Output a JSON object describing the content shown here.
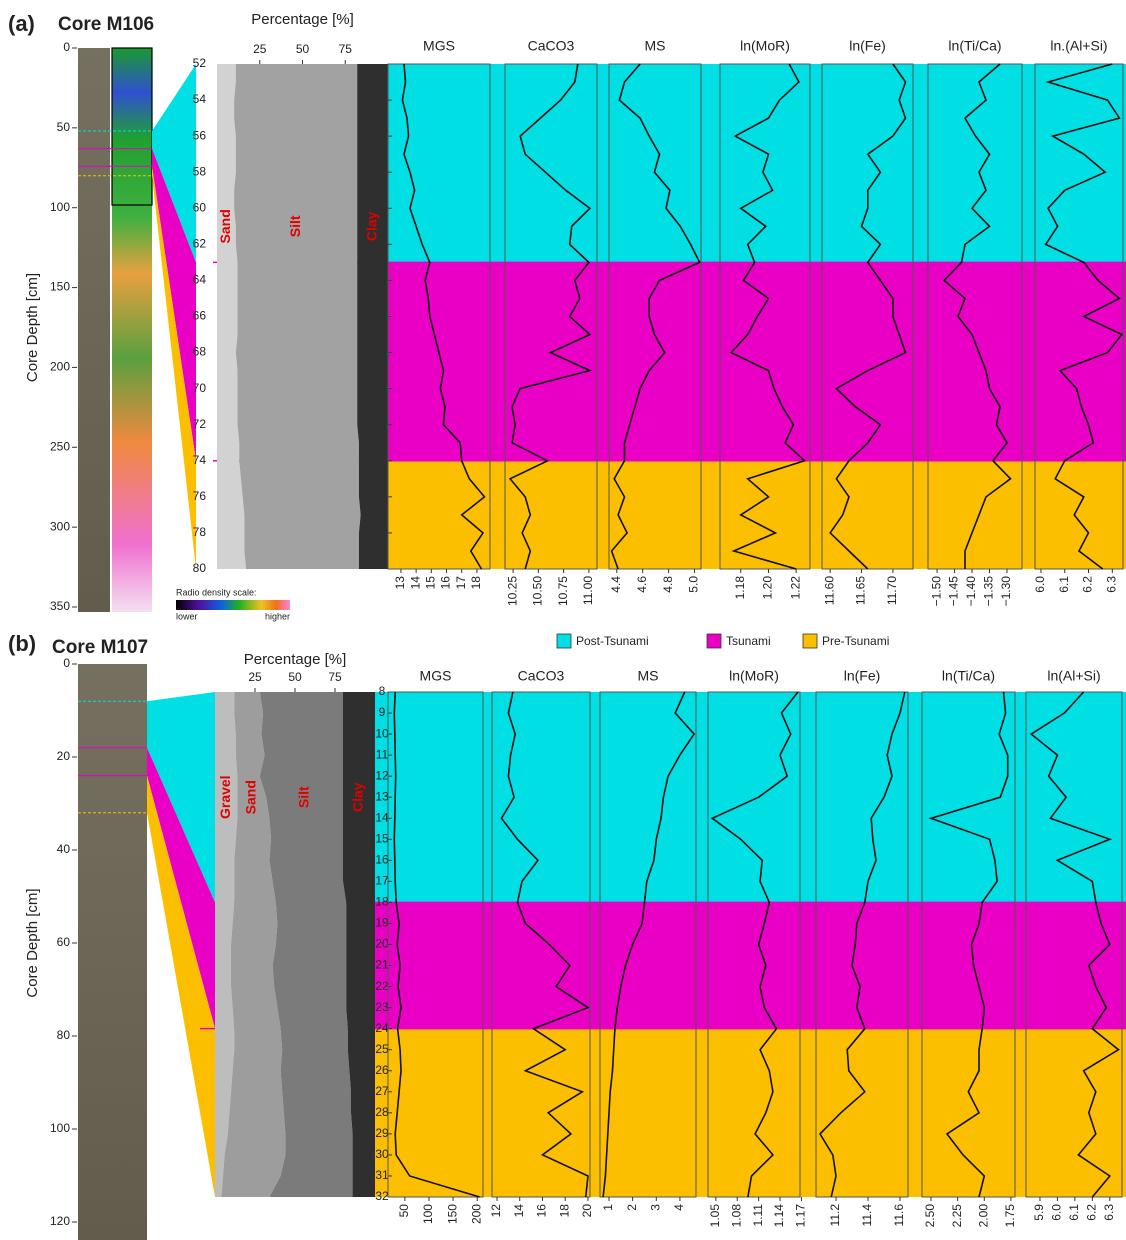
{
  "legend": [
    {
      "name": "Post-Tsunami",
      "color": "#00e0e4"
    },
    {
      "name": "Tsunami",
      "color": "#ea00c4"
    },
    {
      "name": "Pre-Tsunami",
      "color": "#fcbf00"
    }
  ],
  "chart_data": [
    {
      "type": "panel",
      "label": "(a)",
      "title": "Core M106",
      "invert_y": true,
      "core_axis": {
        "label": "Core Depth [cm]",
        "ylim": [
          0,
          350
        ],
        "yticks": [
          0,
          50,
          100,
          150,
          200,
          250,
          300,
          350
        ]
      },
      "density_scale": {
        "title": "Radio density scale:",
        "low": "lower",
        "high": "higher"
      },
      "boundaries": [
        52,
        63,
        74,
        80
      ],
      "ylim": [
        52,
        80
      ],
      "yticks": [
        52,
        54,
        56,
        58,
        60,
        62,
        64,
        66,
        68,
        70,
        72,
        74,
        76,
        78,
        80
      ],
      "depths": [
        52,
        53,
        54,
        55,
        56,
        57,
        58,
        59,
        60,
        61,
        62,
        63,
        64,
        65,
        66,
        67,
        68,
        69,
        70,
        71,
        72,
        73,
        74,
        75,
        76,
        77,
        78,
        79,
        80
      ],
      "composition": {
        "type": "area",
        "title": "Percentage [%]",
        "xlim": [
          0,
          100
        ],
        "xticks": [
          25,
          50,
          75
        ],
        "series": [
          {
            "name": "Sand",
            "color": "#d2d2d2",
            "values": [
              11,
              11,
              10,
              10,
              11,
              11,
              11,
              10,
              10,
              11,
              11,
              12,
              12,
              12,
              12,
              12,
              11,
              12,
              12,
              12,
              12,
              13,
              13,
              14,
              15,
              16,
              16,
              16,
              17
            ]
          },
          {
            "name": "Silt",
            "color": "#a2a2a2",
            "values": [
              71,
              71,
              72,
              72,
              71,
              71,
              71,
              72,
              72,
              71,
              71,
              70,
              70,
              70,
              70,
              70,
              71,
              70,
              70,
              70,
              70,
              70,
              70,
              69,
              68,
              68,
              67,
              67,
              66
            ]
          },
          {
            "name": "Clay",
            "color": "#2f2f2f",
            "values": [
              18,
              18,
              18,
              18,
              18,
              18,
              18,
              18,
              18,
              18,
              18,
              18,
              18,
              18,
              18,
              18,
              18,
              18,
              18,
              18,
              18,
              17,
              17,
              17,
              17,
              16,
              17,
              17,
              17
            ]
          }
        ]
      },
      "profiles": [
        {
          "type": "line",
          "title": "MGS",
          "xlim": [
            12.15,
            18.86
          ],
          "xticks": [
            13,
            14,
            15,
            16,
            17,
            18
          ],
          "values": [
            13.2,
            13.3,
            13.1,
            13.4,
            13.5,
            13.2,
            13.6,
            13.9,
            13.6,
            14.0,
            14.4,
            14.9,
            14.6,
            14.8,
            14.9,
            15.2,
            15.5,
            15.8,
            15.6,
            15.9,
            15.8,
            16.9,
            17.0,
            17.5,
            18.5,
            17.0,
            18.4,
            17.6,
            18.3
          ]
        },
        {
          "type": "line",
          "title": "CaCO3",
          "xlim": [
            10.17,
            11.08
          ],
          "xticks": [
            {
              "value": 10.25,
              "label": "10.25"
            },
            {
              "value": 10.5,
              "label": "10.50"
            },
            {
              "value": 10.75,
              "label": "10.75"
            },
            {
              "value": 11,
              "label": "11.00"
            }
          ],
          "values": [
            10.89,
            10.86,
            10.72,
            10.52,
            10.32,
            10.37,
            10.57,
            10.77,
            11.01,
            10.83,
            10.81,
            11.0,
            10.86,
            10.91,
            10.81,
            11.01,
            10.62,
            11.01,
            10.32,
            10.24,
            10.27,
            10.24,
            10.59,
            10.22,
            10.37,
            10.42,
            10.34,
            10.42,
            10.37
          ]
        },
        {
          "type": "line",
          "title": "MS",
          "xlim": [
            4.34,
            5.05
          ],
          "xticks": [
            4.4,
            4.6,
            4.8,
            {
              "value": 5,
              "label": "5.0"
            }
          ],
          "values": [
            4.58,
            4.46,
            4.42,
            4.58,
            4.65,
            4.73,
            4.69,
            4.81,
            4.78,
            4.89,
            4.97,
            5.04,
            4.73,
            4.65,
            4.65,
            4.69,
            4.77,
            4.65,
            4.58,
            4.54,
            4.5,
            4.46,
            4.46,
            4.38,
            4.46,
            4.41,
            4.48,
            4.36,
            4.41
          ]
        },
        {
          "type": "line",
          "title": "ln(MoR)",
          "xlim": [
            1.165,
            1.23
          ],
          "xticks": [
            1.18,
            {
              "value": 1.2,
              "label": "1.20"
            },
            1.22
          ],
          "values": [
            1.215,
            1.222,
            1.208,
            1.2,
            1.176,
            1.2,
            1.196,
            1.203,
            1.18,
            1.198,
            1.185,
            1.19,
            1.182,
            1.2,
            1.192,
            1.185,
            1.173,
            1.2,
            1.204,
            1.21,
            1.218,
            1.212,
            1.226,
            1.185,
            1.2,
            1.18,
            1.205,
            1.175,
            1.22
          ]
        },
        {
          "type": "line",
          "title": "ln(Fe)",
          "xlim": [
            11.587,
            11.732
          ],
          "xticks": [
            {
              "value": 11.6,
              "label": "11.60"
            },
            11.65,
            {
              "value": 11.7,
              "label": "11.70"
            }
          ],
          "values": [
            11.7,
            11.72,
            11.71,
            11.72,
            11.7,
            11.66,
            11.68,
            11.66,
            11.66,
            11.65,
            11.68,
            11.66,
            11.68,
            11.7,
            11.7,
            11.71,
            11.72,
            11.66,
            11.61,
            11.64,
            11.68,
            11.66,
            11.63,
            11.61,
            11.63,
            11.62,
            11.6,
            11.63,
            11.66
          ]
        },
        {
          "type": "line",
          "title": "ln(Ti/Ca)",
          "xlim": [
            -1.526,
            -1.257
          ],
          "xticks": [
            {
              "value": -1.5,
              "label": "−1.50"
            },
            {
              "value": -1.45,
              "label": "−1.45"
            },
            {
              "value": -1.4,
              "label": "−1.40"
            },
            {
              "value": -1.35,
              "label": "−1.35"
            },
            {
              "value": -1.3,
              "label": "−1.30"
            }
          ],
          "values": [
            -1.32,
            -1.38,
            -1.36,
            -1.42,
            -1.39,
            -1.35,
            -1.38,
            -1.36,
            -1.4,
            -1.35,
            -1.42,
            -1.43,
            -1.48,
            -1.42,
            -1.44,
            -1.4,
            -1.38,
            -1.36,
            -1.35,
            -1.32,
            -1.33,
            -1.3,
            -1.34,
            -1.29,
            -1.36,
            -1.38,
            -1.4,
            -1.42,
            -1.42
          ]
        },
        {
          "type": "line",
          "title": "ln.(Al+Si)",
          "xlim": [
            5.975,
            6.345
          ],
          "xticks": [
            {
              "value": 6,
              "label": "6.0"
            },
            6.1,
            6.2,
            6.3
          ],
          "values": [
            6.3,
            6.03,
            6.28,
            6.33,
            6.05,
            6.18,
            6.27,
            6.1,
            6.03,
            6.07,
            6.02,
            6.18,
            6.24,
            6.33,
            6.18,
            6.34,
            6.28,
            6.08,
            6.15,
            6.17,
            6.2,
            6.22,
            6.1,
            6.06,
            6.18,
            6.14,
            6.2,
            6.16,
            6.26
          ]
        }
      ]
    },
    {
      "type": "panel",
      "label": "(b)",
      "title": "Core M107",
      "invert_y": true,
      "core_axis": {
        "label": "Core Depth [cm]",
        "ylim": [
          0,
          120
        ],
        "yticks": [
          0,
          20,
          40,
          60,
          80,
          100,
          120
        ]
      },
      "boundaries": [
        8,
        18,
        24,
        32
      ],
      "ylim": [
        8,
        32
      ],
      "yticks": [
        8,
        9,
        10,
        11,
        12,
        13,
        14,
        15,
        16,
        17,
        18,
        19,
        20,
        21,
        22,
        23,
        24,
        25,
        26,
        27,
        28,
        29,
        30,
        31,
        32
      ],
      "depths": [
        8,
        9,
        10,
        11,
        12,
        13,
        14,
        15,
        16,
        17,
        18,
        19,
        20,
        21,
        22,
        23,
        24,
        25,
        26,
        27,
        28,
        29,
        30,
        31,
        32
      ],
      "composition": {
        "type": "area",
        "title": "Percentage [%]",
        "xlim": [
          0,
          100
        ],
        "xticks": [
          25,
          50,
          75
        ],
        "series": [
          {
            "name": "Gravel",
            "color": "#bdbdbd",
            "values": [
              12,
              12,
              13,
              13,
              14,
              14,
              14,
              13,
              12,
              12,
              12,
              11,
              10,
              10,
              10,
              11,
              12,
              12,
              11,
              10,
              9,
              8,
              6,
              5,
              4
            ]
          },
          {
            "name": "Sand",
            "color": "#9d9d9d",
            "values": [
              16,
              18,
              16,
              18,
              14,
              18,
              20,
              22,
              22,
              24,
              26,
              28,
              28,
              26,
              27,
              28,
              29,
              30,
              30,
              32,
              34,
              36,
              38,
              36,
              30
            ]
          },
          {
            "name": "Silt",
            "color": "#7b7b7b",
            "values": [
              52,
              50,
              51,
              49,
              52,
              48,
              46,
              45,
              46,
              44,
              44,
              43,
              44,
              46,
              45,
              43,
              42,
              41,
              43,
              43,
              42,
              42,
              42,
              45,
              52
            ]
          },
          {
            "name": "Clay",
            "color": "#2f2f2f",
            "values": [
              20,
              20,
              20,
              20,
              20,
              20,
              20,
              20,
              20,
              20,
              18,
              18,
              18,
              18,
              18,
              18,
              17,
              17,
              16,
              15,
              15,
              14,
              14,
              14,
              14
            ]
          }
        ]
      },
      "profiles": [
        {
          "type": "line",
          "title": "MGS",
          "xlim": [
            15,
            212
          ],
          "xticks": [
            50,
            100,
            150,
            200
          ],
          "values": [
            30,
            28,
            29,
            30,
            31,
            30,
            29,
            28,
            29,
            30,
            32,
            38,
            34,
            40,
            36,
            42,
            35,
            40,
            42,
            38,
            34,
            30,
            32,
            60,
            205
          ]
        },
        {
          "type": "line",
          "title": "CaCO3",
          "xlim": [
            11.56,
            20.18
          ],
          "xticks": [
            12,
            14,
            16,
            18,
            20
          ],
          "values": [
            13.4,
            13.0,
            13.6,
            13.2,
            13.0,
            13.5,
            12.4,
            13.8,
            15.6,
            14.2,
            13.8,
            14.5,
            16.6,
            18.4,
            17.2,
            20.0,
            15.2,
            18.0,
            14.5,
            19.5,
            16.5,
            18.5,
            16.0,
            20.0,
            19.8
          ]
        },
        {
          "type": "line",
          "title": "MS",
          "xlim": [
            0.62,
            4.68
          ],
          "xticks": [
            1,
            2,
            3,
            4
          ],
          "values": [
            4.2,
            3.8,
            4.6,
            4.0,
            3.5,
            3.3,
            3.2,
            3.0,
            2.9,
            2.6,
            2.5,
            2.4,
            2.0,
            1.7,
            1.5,
            1.35,
            1.25,
            1.2,
            1.15,
            1.05,
            1.0,
            0.95,
            0.9,
            0.85,
            0.75
          ]
        },
        {
          "type": "line",
          "title": "ln(MoR)",
          "xlim": [
            1.039,
            1.168
          ],
          "xticks": [
            1.05,
            1.08,
            1.11,
            1.14,
            1.17
          ],
          "values": [
            1.165,
            1.142,
            1.155,
            1.14,
            1.15,
            1.11,
            1.045,
            1.085,
            1.115,
            1.112,
            1.125,
            1.118,
            1.11,
            1.12,
            1.112,
            1.118,
            1.135,
            1.112,
            1.125,
            1.13,
            1.12,
            1.105,
            1.13,
            1.1,
            1.095
          ]
        },
        {
          "type": "line",
          "title": "ln(Fe)",
          "xlim": [
            11.075,
            11.65
          ],
          "xticks": [
            11.2,
            11.4,
            11.6
          ],
          "values": [
            11.63,
            11.6,
            11.55,
            11.52,
            11.55,
            11.5,
            11.42,
            11.43,
            11.45,
            11.4,
            11.38,
            11.33,
            11.32,
            11.3,
            11.35,
            11.33,
            11.38,
            11.27,
            11.28,
            11.38,
            11.23,
            11.1,
            11.18,
            11.2,
            11.17
          ]
        },
        {
          "type": "line",
          "title": "ln(Ti/Ca)",
          "xlim": [
            2.584,
            1.712
          ],
          "xticks": [
            {
              "value": 2.5,
              "label": "2.50"
            },
            2.25,
            {
              "value": 2,
              "label": "2.00"
            },
            1.75
          ],
          "values": [
            1.82,
            1.8,
            1.86,
            1.78,
            1.78,
            1.85,
            2.5,
            1.95,
            1.9,
            1.88,
            2.02,
            2.05,
            2.12,
            2.1,
            2.05,
            2.0,
            2.02,
            2.05,
            2.05,
            2.15,
            2.05,
            2.35,
            2.2,
            2.0,
            2.05
          ]
        },
        {
          "type": "line",
          "title": "ln(Al+Si)",
          "xlim": [
            5.82,
            6.37
          ],
          "xticks": [
            5.9,
            {
              "value": 6,
              "label": "6.0"
            },
            6.1,
            6.2,
            6.3
          ],
          "values": [
            6.15,
            6.04,
            5.85,
            6.0,
            5.95,
            6.05,
            5.96,
            6.3,
            6.0,
            6.2,
            6.22,
            6.25,
            6.3,
            6.18,
            6.22,
            6.28,
            6.2,
            6.35,
            6.15,
            6.22,
            6.18,
            6.22,
            6.12,
            6.3,
            6.2
          ]
        }
      ]
    }
  ]
}
